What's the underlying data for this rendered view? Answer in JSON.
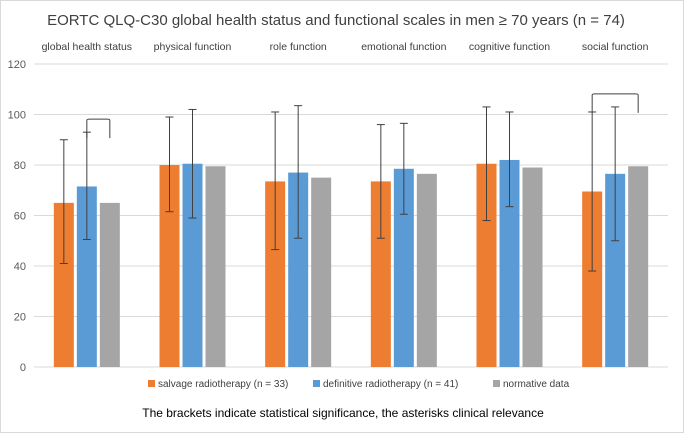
{
  "chart_data": {
    "type": "bar",
    "title": "EORTC QLQ-C30 global health status and functional scales in men ≥ 70 years (n = 74)",
    "categories": [
      "global health status",
      "physical function",
      "role function",
      "emotional function",
      "cognitive function",
      "social function"
    ],
    "series": [
      {
        "name": "salvage radiotherapy (n = 33)",
        "color": "#ED7D31",
        "values": [
          65,
          80,
          73.5,
          73.5,
          80.5,
          69.5
        ],
        "error_low": [
          41,
          61.5,
          46.5,
          51,
          58,
          38
        ],
        "error_high": [
          90,
          99,
          101,
          96,
          103,
          101
        ]
      },
      {
        "name": "definitive radiotherapy (n = 41)",
        "color": "#5B9BD5",
        "values": [
          71.5,
          80.5,
          77,
          78.5,
          82,
          76.5
        ],
        "error_low": [
          50.5,
          59,
          51,
          60.5,
          63.5,
          50
        ],
        "error_high": [
          93,
          102,
          103.5,
          96.5,
          101,
          103
        ]
      },
      {
        "name": "normative data",
        "color": "#A5A5A5",
        "values": [
          65,
          79.5,
          75,
          76.5,
          79,
          79.5
        ]
      }
    ],
    "brackets": [
      {
        "category": "global health status",
        "from_series": 1,
        "to_series": 2
      },
      {
        "category": "social function",
        "from_series": 0,
        "to_series": 2
      }
    ],
    "ylim": [
      0,
      120
    ],
    "yticks": [
      0,
      20,
      40,
      60,
      80,
      100,
      120
    ],
    "grid": true,
    "xlabel": "",
    "ylabel": "",
    "legend_position": "bottom",
    "caption": "The brackets indicate statistical significance, the asterisks clinical relevance"
  }
}
